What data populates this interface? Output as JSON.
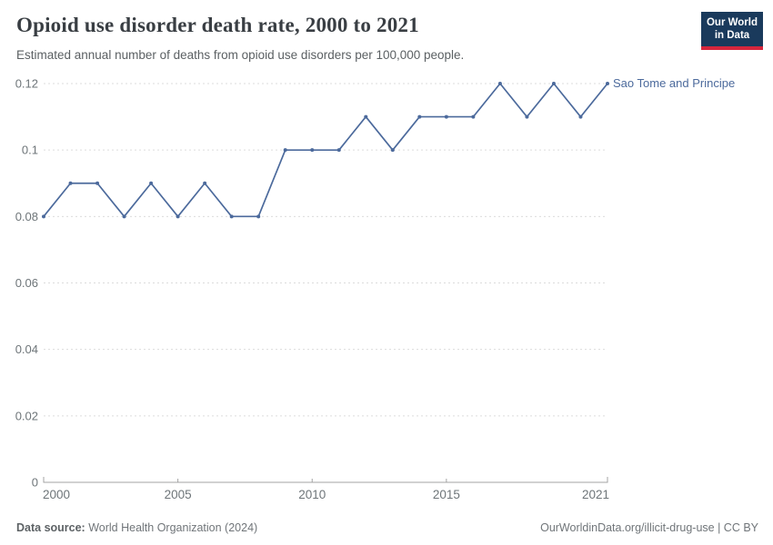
{
  "header": {
    "title": "Opioid use disorder death rate, 2000 to 2021",
    "subtitle": "Estimated annual number of deaths from opioid use disorders per 100,000 people.",
    "logo": {
      "line1": "Our World",
      "line2": "in Data"
    }
  },
  "chart_data": {
    "type": "line",
    "title": "Opioid use disorder death rate, 2000 to 2021",
    "subtitle": "Estimated annual number of deaths from opioid use disorders per 100,000 people.",
    "x": [
      2000,
      2001,
      2002,
      2003,
      2004,
      2005,
      2006,
      2007,
      2008,
      2009,
      2010,
      2011,
      2012,
      2013,
      2014,
      2015,
      2016,
      2017,
      2018,
      2019,
      2020,
      2021
    ],
    "series": [
      {
        "name": "Sao Tome and Principe",
        "color": "#4C6A9C",
        "values": [
          0.08,
          0.09,
          0.09,
          0.08,
          0.09,
          0.08,
          0.09,
          0.08,
          0.08,
          0.1,
          0.1,
          0.1,
          0.11,
          0.1,
          0.11,
          0.11,
          0.11,
          0.12,
          0.11,
          0.12,
          0.11,
          0.12
        ]
      }
    ],
    "xlim": [
      2000,
      2021
    ],
    "ylim": [
      0,
      0.12
    ],
    "yticks": [
      0,
      0.02,
      0.04,
      0.06,
      0.08,
      0.1,
      0.12
    ],
    "ytick_labels": [
      "0",
      "0.02",
      "0.04",
      "0.06",
      "0.08",
      "0.1",
      "0.12"
    ],
    "xticks": [
      2000,
      2005,
      2010,
      2015,
      2021
    ],
    "xtick_labels": [
      "2000",
      "2005",
      "2010",
      "2015",
      "2021"
    ],
    "grid": "horizontal-dashed",
    "legend_position": "end-of-line-label",
    "xlabel": "",
    "ylabel": ""
  },
  "footer": {
    "datasource_label": "Data source:",
    "datasource_value": " World Health Organization (2024)",
    "credit": "OurWorldinData.org/illicit-drug-use | CC BY"
  },
  "colors": {
    "accent_blue": "#4C6A9C",
    "logo_navy": "#1A3A5C",
    "logo_red": "#D7263D",
    "gridline": "#dcdcdc",
    "axis": "#a3a3a3",
    "tick_text": "#6e7579"
  }
}
